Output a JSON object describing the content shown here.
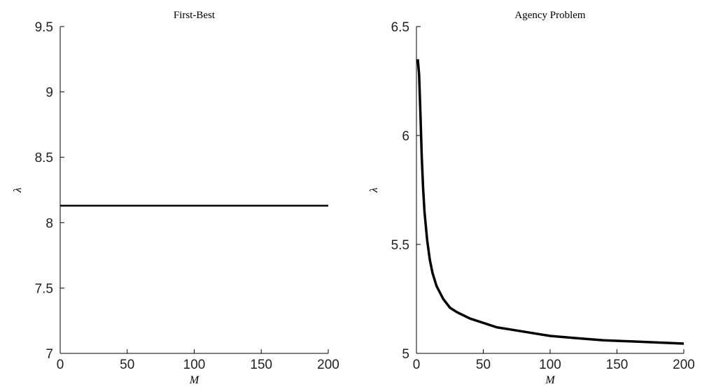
{
  "chart_data": [
    {
      "type": "line",
      "title": "First-Best",
      "xlabel": "M",
      "ylabel": "λ",
      "xlim": [
        0,
        200
      ],
      "ylim": [
        7,
        9.5
      ],
      "xticks": [
        "0",
        "50",
        "100",
        "150",
        "200"
      ],
      "yticks": [
        "7",
        "7.5",
        "8",
        "8.5",
        "9",
        "9.5"
      ],
      "xtick_values": [
        0,
        50,
        100,
        150,
        200
      ],
      "ytick_values": [
        7,
        7.5,
        8,
        8.5,
        9,
        9.5
      ],
      "series": [
        {
          "x": [
            0,
            200
          ],
          "y": [
            8.13,
            8.13
          ]
        }
      ]
    },
    {
      "type": "line",
      "title": "Agency Problem",
      "xlabel": "M",
      "ylabel": "λ",
      "xlim": [
        0,
        200
      ],
      "ylim": [
        5,
        6.5
      ],
      "xticks": [
        "0",
        "50",
        "100",
        "150",
        "200"
      ],
      "yticks": [
        "5",
        "5.5",
        "6",
        "6.5"
      ],
      "xtick_values": [
        0,
        50,
        100,
        150,
        200
      ],
      "ytick_values": [
        5,
        5.5,
        6,
        6.5
      ],
      "series": [
        {
          "x": [
            1,
            2,
            3,
            4,
            5,
            6,
            8,
            10,
            12,
            15,
            20,
            25,
            30,
            40,
            50,
            60,
            70,
            80,
            100,
            120,
            140,
            160,
            180,
            200
          ],
          "y": [
            6.35,
            6.28,
            6.1,
            5.9,
            5.76,
            5.65,
            5.52,
            5.43,
            5.37,
            5.31,
            5.25,
            5.21,
            5.19,
            5.16,
            5.14,
            5.12,
            5.11,
            5.1,
            5.08,
            5.07,
            5.06,
            5.055,
            5.05,
            5.045
          ]
        }
      ]
    }
  ]
}
